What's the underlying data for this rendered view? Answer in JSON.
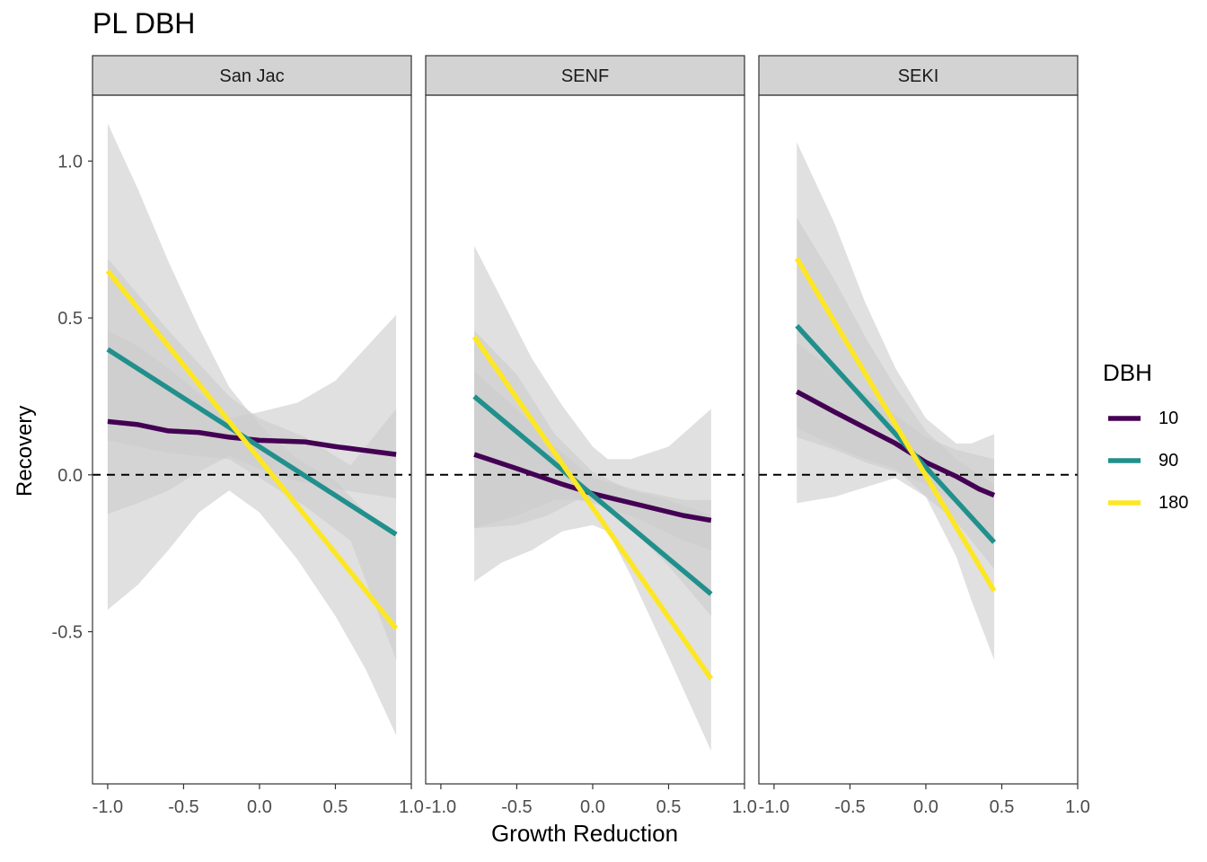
{
  "chart_data": {
    "type": "line",
    "title": "PL DBH",
    "xlabel": "Growth Reduction",
    "ylabel": "Recovery",
    "xlim": [
      -1.1,
      1.0
    ],
    "ylim": [
      -0.985,
      1.21
    ],
    "x_ticks": [
      -1.0,
      -0.5,
      0.0,
      0.5,
      1.0
    ],
    "x_tick_labels": [
      "-1.0",
      "-0.5",
      "0.0",
      "0.5",
      "1.0"
    ],
    "y_ticks": [
      1.0,
      0.5,
      0.0,
      -0.5
    ],
    "y_tick_labels": [
      "1.0",
      "0.5",
      "0.0",
      "-0.5"
    ],
    "reference_line": {
      "y": 0,
      "style": "dashed"
    },
    "legend": {
      "title": "DBH",
      "placement": "right",
      "entries": [
        "10",
        "90",
        "180"
      ]
    },
    "colors": {
      "10": "#440154",
      "90": "#21908C",
      "180": "#FDE725",
      "ribbon": "#cccccc",
      "strip": "#d3d3d3"
    },
    "panels": [
      {
        "name": "San Jac",
        "series": [
          {
            "name": "10",
            "points": [
              [
                -1.0,
                0.17
              ],
              [
                -0.8,
                0.16
              ],
              [
                -0.6,
                0.14
              ],
              [
                -0.4,
                0.135
              ],
              [
                -0.2,
                0.12
              ],
              [
                0.0,
                0.11
              ],
              [
                0.3,
                0.105
              ],
              [
                0.5,
                0.09
              ],
              [
                0.9,
                0.065
              ]
            ],
            "ribbon": [
              [
                -1.0,
                -0.125,
                0.46
              ],
              [
                -0.8,
                -0.09,
                0.41
              ],
              [
                -0.6,
                -0.05,
                0.34
              ],
              [
                -0.4,
                0.01,
                0.26
              ],
              [
                -0.2,
                0.06,
                0.18
              ],
              [
                0.0,
                0.02,
                0.2
              ],
              [
                0.25,
                -0.02,
                0.23
              ],
              [
                0.5,
                -0.045,
                0.3
              ],
              [
                0.9,
                -0.075,
                0.51
              ]
            ]
          },
          {
            "name": "90",
            "points": [
              [
                -1.0,
                0.4
              ],
              [
                0.9,
                -0.19
              ]
            ],
            "ribbon": [
              [
                -1.0,
                0.11,
                0.69
              ],
              [
                -0.6,
                0.07,
                0.46
              ],
              [
                -0.2,
                0.05,
                0.25
              ],
              [
                0.0,
                -0.01,
                0.18
              ],
              [
                0.3,
                -0.1,
                0.12
              ],
              [
                0.6,
                -0.21,
                0.03
              ],
              [
                0.9,
                -0.59,
                0.21
              ]
            ]
          },
          {
            "name": "180",
            "points": [
              [
                -1.0,
                0.65
              ],
              [
                0.9,
                -0.49
              ]
            ],
            "ribbon": [
              [
                -1.0,
                -0.43,
                1.12
              ],
              [
                -0.8,
                -0.35,
                0.91
              ],
              [
                -0.6,
                -0.24,
                0.68
              ],
              [
                -0.4,
                -0.12,
                0.47
              ],
              [
                -0.2,
                -0.05,
                0.28
              ],
              [
                0.0,
                -0.12,
                0.16
              ],
              [
                0.25,
                -0.27,
                0.05
              ],
              [
                0.5,
                -0.45,
                -0.02
              ],
              [
                0.7,
                -0.62,
                -0.12
              ],
              [
                0.9,
                -0.83,
                -0.2
              ]
            ]
          }
        ]
      },
      {
        "name": "SENF",
        "series": [
          {
            "name": "10",
            "points": [
              [
                -0.78,
                0.065
              ],
              [
                -0.5,
                0.02
              ],
              [
                -0.2,
                -0.03
              ],
              [
                0.0,
                -0.06
              ],
              [
                0.3,
                -0.095
              ],
              [
                0.6,
                -0.13
              ],
              [
                0.78,
                -0.145
              ]
            ],
            "ribbon": [
              [
                -0.78,
                -0.17,
                0.33
              ],
              [
                -0.5,
                -0.16,
                0.21
              ],
              [
                -0.3,
                -0.13,
                0.11
              ],
              [
                -0.1,
                -0.08,
                0.03
              ],
              [
                0.0,
                -0.09,
                -0.01
              ],
              [
                0.3,
                -0.14,
                -0.05
              ],
              [
                0.6,
                -0.21,
                -0.08
              ],
              [
                0.78,
                -0.24,
                -0.08
              ]
            ]
          },
          {
            "name": "90",
            "points": [
              [
                -0.78,
                0.25
              ],
              [
                0.78,
                -0.38
              ]
            ],
            "ribbon": [
              [
                -0.78,
                -0.17,
                0.46
              ],
              [
                -0.5,
                -0.13,
                0.32
              ],
              [
                -0.25,
                -0.08,
                0.13
              ],
              [
                0.0,
                -0.08,
                0.01
              ],
              [
                0.25,
                -0.17,
                -0.05
              ],
              [
                0.5,
                -0.29,
                -0.08
              ],
              [
                0.78,
                -0.45,
                -0.13
              ]
            ]
          },
          {
            "name": "180",
            "points": [
              [
                -0.78,
                0.44
              ],
              [
                0.78,
                -0.65
              ]
            ],
            "ribbon": [
              [
                -0.78,
                -0.34,
                0.73
              ],
              [
                -0.6,
                -0.28,
                0.56
              ],
              [
                -0.4,
                -0.24,
                0.37
              ],
              [
                -0.2,
                -0.18,
                0.22
              ],
              [
                0.0,
                -0.16,
                0.09
              ],
              [
                0.1,
                -0.18,
                0.05
              ],
              [
                0.25,
                -0.32,
                0.05
              ],
              [
                0.5,
                -0.58,
                0.09
              ],
              [
                0.78,
                -0.88,
                0.21
              ]
            ]
          }
        ]
      },
      {
        "name": "SEKI",
        "series": [
          {
            "name": "10",
            "points": [
              [
                -0.85,
                0.265
              ],
              [
                -0.6,
                0.2
              ],
              [
                -0.4,
                0.15
              ],
              [
                -0.2,
                0.1
              ],
              [
                0.0,
                0.04
              ],
              [
                0.2,
                -0.005
              ],
              [
                0.35,
                -0.045
              ],
              [
                0.45,
                -0.065
              ]
            ],
            "ribbon": [
              [
                -0.85,
                0.12,
                0.42
              ],
              [
                -0.6,
                0.08,
                0.33
              ],
              [
                -0.4,
                0.04,
                0.26
              ],
              [
                -0.2,
                0.01,
                0.19
              ],
              [
                0.0,
                -0.03,
                0.12
              ],
              [
                0.2,
                -0.09,
                0.08
              ],
              [
                0.45,
                -0.2,
                0.05
              ]
            ]
          },
          {
            "name": "90",
            "points": [
              [
                -0.85,
                0.475
              ],
              [
                0.45,
                -0.215
              ]
            ],
            "ribbon": [
              [
                -0.85,
                0.15,
                0.82
              ],
              [
                -0.6,
                0.09,
                0.62
              ],
              [
                -0.4,
                0.05,
                0.44
              ],
              [
                -0.2,
                0.02,
                0.28
              ],
              [
                0.0,
                -0.07,
                0.14
              ],
              [
                0.2,
                -0.15,
                0.05
              ],
              [
                0.45,
                -0.3,
                -0.03
              ]
            ]
          },
          {
            "name": "180",
            "points": [
              [
                -0.85,
                0.69
              ],
              [
                0.45,
                -0.37
              ]
            ],
            "ribbon": [
              [
                -0.85,
                -0.09,
                1.06
              ],
              [
                -0.6,
                -0.07,
                0.8
              ],
              [
                -0.4,
                -0.04,
                0.55
              ],
              [
                -0.2,
                -0.01,
                0.34
              ],
              [
                0.0,
                -0.07,
                0.18
              ],
              [
                0.2,
                -0.26,
                0.1
              ],
              [
                0.3,
                -0.4,
                0.1
              ],
              [
                0.45,
                -0.59,
                0.13
              ]
            ]
          }
        ]
      }
    ]
  }
}
